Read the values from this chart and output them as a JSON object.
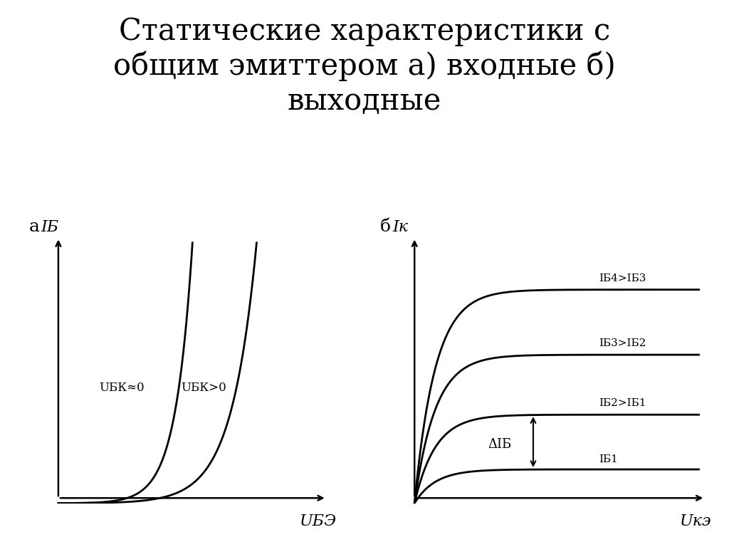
{
  "title_line1": "Статические характеристики с",
  "title_line2": "общим эмиттером а) входные б)",
  "title_line3": "выходные",
  "title_fontsize": 30,
  "label_a": "а",
  "label_b": "б",
  "left_ylabel": "IБ",
  "left_xlabel": "UБЭ",
  "left_curve1_label": "UБК≈0",
  "left_curve2_label": "UБК>0",
  "right_ylabel": "Iк",
  "right_xlabel": "Uкэ",
  "right_labels_top": [
    "IБ4>IБ3",
    "IБ3>IБ2",
    "IБ2>IБ1"
  ],
  "right_label_b1": "IБ1",
  "delta_label": "ΔIБ",
  "bg_color": "#ffffff",
  "curve_color": "#000000",
  "text_color": "#000000",
  "label_fontsize": 16,
  "annotation_fontsize": 13
}
